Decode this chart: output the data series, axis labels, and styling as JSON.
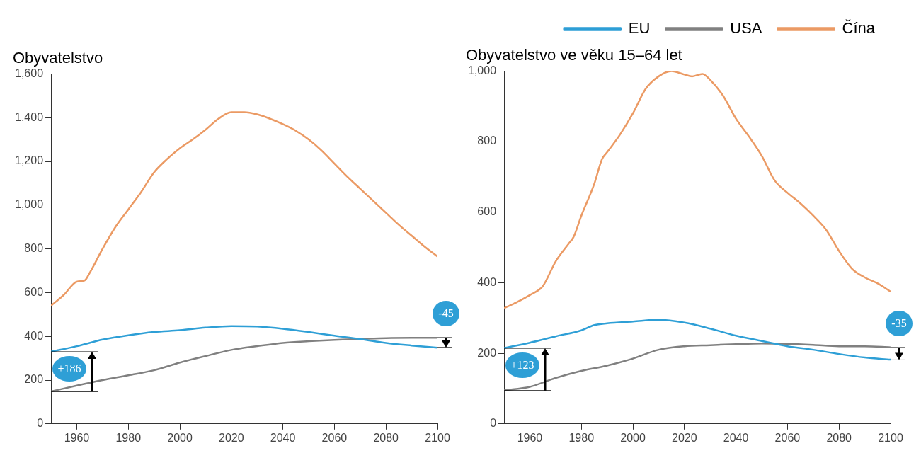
{
  "chart_data": [
    {
      "type": "line",
      "title": "Obyvatelstvo",
      "x": [
        1950,
        1955,
        1960,
        1963,
        1965,
        1970,
        1975,
        1980,
        1985,
        1990,
        1995,
        2000,
        2005,
        2010,
        2015,
        2020,
        2025,
        2030,
        2035,
        2040,
        2045,
        2050,
        2055,
        2060,
        2065,
        2070,
        2075,
        2080,
        2085,
        2090,
        2095,
        2100
      ],
      "series": [
        {
          "color": "#2e9fd6",
          "x": [
            1950,
            1960,
            1970,
            1980,
            1990,
            2000,
            2010,
            2020,
            2030,
            2040,
            2050,
            2060,
            2070,
            2080,
            2090,
            2100
          ],
          "values": [
            330,
            355,
            385,
            405,
            420,
            428,
            440,
            447,
            445,
            435,
            420,
            403,
            388,
            370,
            358,
            348
          ]
        },
        {
          "color": "#808080",
          "x": [
            1950,
            1960,
            1970,
            1980,
            1990,
            2000,
            2010,
            2020,
            2030,
            2040,
            2050,
            2060,
            2070,
            2080,
            2090,
            2100
          ],
          "values": [
            148,
            175,
            200,
            222,
            245,
            280,
            310,
            338,
            355,
            370,
            378,
            384,
            388,
            392,
            393,
            393
          ]
        },
        {
          "color": "#eb9a64",
          "values": [
            540,
            590,
            650,
            655,
            690,
            800,
            900,
            980,
            1060,
            1150,
            1210,
            1260,
            1300,
            1345,
            1395,
            1425,
            1425,
            1415,
            1395,
            1370,
            1340,
            1300,
            1250,
            1190,
            1130,
            1075,
            1020,
            965,
            910,
            860,
            810,
            765
          ]
        }
      ],
      "xlim": [
        1950,
        2100
      ],
      "xticks": [
        1960,
        1980,
        2000,
        2020,
        2040,
        2060,
        2080,
        2100
      ],
      "ylim": [
        0,
        1600
      ],
      "yticks": [
        0,
        {
          "value": 200,
          "label": "200"
        },
        {
          "value": 400,
          "label": "400"
        },
        {
          "value": 600,
          "label": "600"
        },
        {
          "value": 800,
          "label": "800"
        },
        {
          "value": 1000,
          "label": "1,000"
        },
        {
          "value": 1200,
          "label": "1,200"
        },
        {
          "value": 1400,
          "label": "1,400"
        },
        {
          "value": 1600,
          "label": "1,600"
        }
      ],
      "grid": false,
      "legend": false,
      "annotations": [
        "+186",
        "-45"
      ]
    },
    {
      "type": "line",
      "title": "Obyvatelstvo ve věku 15–64 let",
      "x": [
        1950,
        1955,
        1960,
        1965,
        1970,
        1975,
        1977,
        1980,
        1985,
        1988,
        1990,
        1995,
        2000,
        2005,
        2010,
        2015,
        2020,
        2023,
        2027,
        2030,
        2035,
        2040,
        2045,
        2050,
        2055,
        2060,
        2065,
        2070,
        2075,
        2080,
        2085,
        2090,
        2095,
        2100
      ],
      "series": [
        {
          "name": "EU",
          "color": "#2e9fd6",
          "x": [
            1950,
            1960,
            1970,
            1980,
            1985,
            1990,
            2000,
            2010,
            2020,
            2030,
            2040,
            2050,
            2060,
            2070,
            2080,
            2090,
            2100
          ],
          "values": [
            215,
            230,
            248,
            265,
            280,
            285,
            290,
            295,
            287,
            270,
            250,
            235,
            220,
            210,
            198,
            188,
            182
          ]
        },
        {
          "name": "USA",
          "color": "#808080",
          "x": [
            1950,
            1960,
            1970,
            1980,
            1990,
            2000,
            2010,
            2020,
            2030,
            2040,
            2050,
            2060,
            2070,
            2080,
            2090,
            2100
          ],
          "values": [
            95,
            105,
            130,
            150,
            165,
            185,
            210,
            220,
            223,
            226,
            228,
            227,
            224,
            220,
            220,
            217
          ]
        },
        {
          "name": "Čína",
          "color": "#eb9a64",
          "values": [
            328,
            345,
            365,
            390,
            460,
            510,
            530,
            590,
            680,
            750,
            770,
            820,
            880,
            950,
            985,
            1000,
            990,
            985,
            992,
            975,
            930,
            865,
            815,
            760,
            690,
            655,
            625,
            590,
            550,
            490,
            440,
            415,
            398,
            375
          ]
        }
      ],
      "xlim": [
        1950,
        2100
      ],
      "xticks": [
        1960,
        1980,
        2000,
        2020,
        2040,
        2060,
        2080,
        2100
      ],
      "ylim": [
        0,
        1000
      ],
      "yticks": [
        0,
        200,
        400,
        600,
        800,
        {
          "value": 1000,
          "label": "1,000"
        }
      ],
      "grid": false,
      "legend": "top right",
      "annotations": [
        "+123",
        "-35"
      ]
    }
  ]
}
